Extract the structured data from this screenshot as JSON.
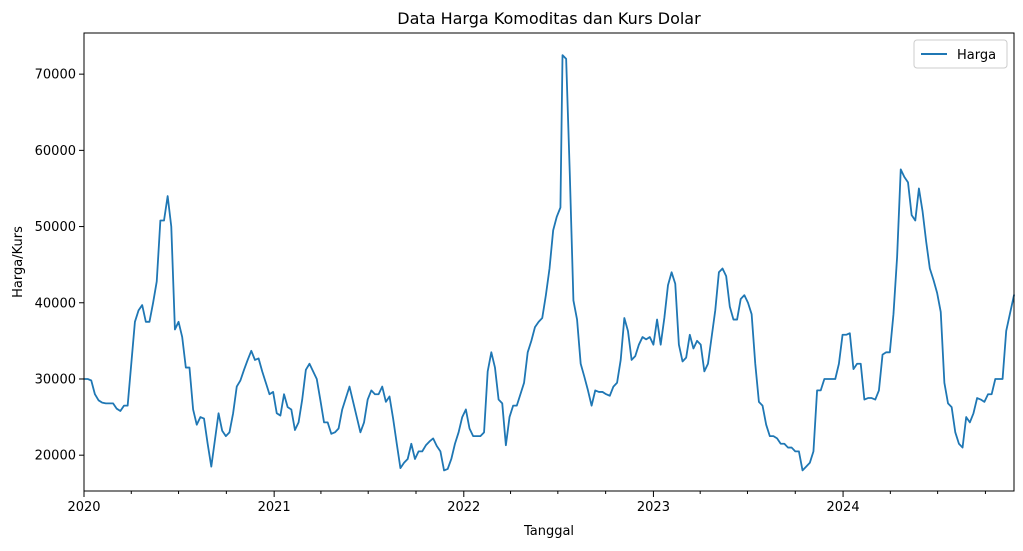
{
  "chart_data": {
    "type": "line",
    "title": "Data Harga Komoditas dan Kurs Dolar",
    "xlabel": "Tanggal",
    "ylabel": "Harga/Kurs",
    "x_range": [
      "2020-01-01",
      "2024-11-25"
    ],
    "ylim": [
      15300,
      75400
    ],
    "yticks": [
      20000,
      30000,
      40000,
      50000,
      60000,
      70000
    ],
    "yticklabels": [
      "20000",
      "30000",
      "40000",
      "50000",
      "60000",
      "70000"
    ],
    "xticks": [
      "2020-01-01",
      "2021-01-01",
      "2022-01-01",
      "2023-01-01",
      "2024-01-01"
    ],
    "xticklabels": [
      "2020",
      "2021",
      "2022",
      "2023",
      "2024"
    ],
    "minor_xticks": [
      "2020-04-01",
      "2020-07-01",
      "2020-10-01",
      "2021-04-01",
      "2021-07-01",
      "2021-10-01",
      "2022-04-01",
      "2022-07-01",
      "2022-10-01",
      "2023-04-01",
      "2023-07-01",
      "2023-10-01",
      "2024-04-01",
      "2024-07-01",
      "2024-10-01"
    ],
    "grid": false,
    "legend_position": "top-right",
    "color": "#1f77b4",
    "series": [
      {
        "name": "Harga",
        "points": [
          [
            "2020-01-01",
            30000
          ],
          [
            "2020-01-08",
            30000
          ],
          [
            "2020-01-15",
            29800
          ],
          [
            "2020-01-22",
            28000
          ],
          [
            "2020-01-29",
            27200
          ],
          [
            "2020-02-05",
            26900
          ],
          [
            "2020-02-12",
            26800
          ],
          [
            "2020-02-19",
            26800
          ],
          [
            "2020-02-26",
            26800
          ],
          [
            "2020-03-04",
            26100
          ],
          [
            "2020-03-11",
            25800
          ],
          [
            "2020-03-18",
            26500
          ],
          [
            "2020-03-25",
            26500
          ],
          [
            "2020-04-01",
            32000
          ],
          [
            "2020-04-08",
            37500
          ],
          [
            "2020-04-15",
            39000
          ],
          [
            "2020-04-22",
            39700
          ],
          [
            "2020-04-29",
            37500
          ],
          [
            "2020-05-06",
            37500
          ],
          [
            "2020-05-13",
            40000
          ],
          [
            "2020-05-20",
            42800
          ],
          [
            "2020-05-27",
            50800
          ],
          [
            "2020-06-03",
            50800
          ],
          [
            "2020-06-10",
            54000
          ],
          [
            "2020-06-17",
            50000
          ],
          [
            "2020-06-24",
            36500
          ],
          [
            "2020-07-01",
            37500
          ],
          [
            "2020-07-08",
            35500
          ],
          [
            "2020-07-15",
            31500
          ],
          [
            "2020-07-22",
            31500
          ],
          [
            "2020-07-29",
            26000
          ],
          [
            "2020-08-05",
            24000
          ],
          [
            "2020-08-12",
            25000
          ],
          [
            "2020-08-19",
            24800
          ],
          [
            "2020-08-26",
            21500
          ],
          [
            "2020-09-02",
            18500
          ],
          [
            "2020-09-09",
            22000
          ],
          [
            "2020-09-16",
            25500
          ],
          [
            "2020-09-23",
            23200
          ],
          [
            "2020-09-30",
            22500
          ],
          [
            "2020-10-07",
            23000
          ],
          [
            "2020-10-14",
            25500
          ],
          [
            "2020-10-21",
            29000
          ],
          [
            "2020-10-28",
            29800
          ],
          [
            "2020-11-04",
            31200
          ],
          [
            "2020-11-11",
            32500
          ],
          [
            "2020-11-18",
            33700
          ],
          [
            "2020-11-25",
            32500
          ],
          [
            "2020-12-02",
            32700
          ],
          [
            "2020-12-09",
            31000
          ],
          [
            "2020-12-16",
            29500
          ],
          [
            "2020-12-23",
            28000
          ],
          [
            "2020-12-30",
            28300
          ],
          [
            "2021-01-06",
            25500
          ],
          [
            "2021-01-13",
            25200
          ],
          [
            "2021-01-20",
            28000
          ],
          [
            "2021-01-27",
            26300
          ],
          [
            "2021-02-03",
            26000
          ],
          [
            "2021-02-10",
            23300
          ],
          [
            "2021-02-17",
            24300
          ],
          [
            "2021-02-24",
            27300
          ],
          [
            "2021-03-03",
            31200
          ],
          [
            "2021-03-10",
            32000
          ],
          [
            "2021-03-17",
            31000
          ],
          [
            "2021-03-24",
            30000
          ],
          [
            "2021-03-31",
            27200
          ],
          [
            "2021-04-07",
            24300
          ],
          [
            "2021-04-14",
            24300
          ],
          [
            "2021-04-21",
            22800
          ],
          [
            "2021-04-28",
            23000
          ],
          [
            "2021-05-05",
            23500
          ],
          [
            "2021-05-12",
            26000
          ],
          [
            "2021-05-19",
            27500
          ],
          [
            "2021-05-26",
            29000
          ],
          [
            "2021-06-02",
            27000
          ],
          [
            "2021-06-09",
            25000
          ],
          [
            "2021-06-16",
            23000
          ],
          [
            "2021-06-23",
            24300
          ],
          [
            "2021-06-30",
            27300
          ],
          [
            "2021-07-07",
            28500
          ],
          [
            "2021-07-14",
            28000
          ],
          [
            "2021-07-21",
            28000
          ],
          [
            "2021-07-28",
            29000
          ],
          [
            "2021-08-04",
            27000
          ],
          [
            "2021-08-11",
            27700
          ],
          [
            "2021-08-18",
            24800
          ],
          [
            "2021-08-25",
            21500
          ],
          [
            "2021-09-01",
            18300
          ],
          [
            "2021-09-08",
            19000
          ],
          [
            "2021-09-15",
            19500
          ],
          [
            "2021-09-22",
            21500
          ],
          [
            "2021-09-29",
            19500
          ],
          [
            "2021-10-06",
            20500
          ],
          [
            "2021-10-13",
            20500
          ],
          [
            "2021-10-20",
            21300
          ],
          [
            "2021-10-27",
            21800
          ],
          [
            "2021-11-03",
            22200
          ],
          [
            "2021-11-10",
            21200
          ],
          [
            "2021-11-17",
            20500
          ],
          [
            "2021-11-24",
            18000
          ],
          [
            "2021-12-01",
            18200
          ],
          [
            "2021-12-08",
            19500
          ],
          [
            "2021-12-15",
            21500
          ],
          [
            "2021-12-22",
            23000
          ],
          [
            "2021-12-29",
            25000
          ],
          [
            "2022-01-05",
            26000
          ],
          [
            "2022-01-12",
            23500
          ],
          [
            "2022-01-19",
            22500
          ],
          [
            "2022-01-26",
            22500
          ],
          [
            "2022-02-02",
            22500
          ],
          [
            "2022-02-09",
            23000
          ],
          [
            "2022-02-16",
            31000
          ],
          [
            "2022-02-23",
            33500
          ],
          [
            "2022-03-02",
            31500
          ],
          [
            "2022-03-09",
            27300
          ],
          [
            "2022-03-16",
            26800
          ],
          [
            "2022-03-23",
            21300
          ],
          [
            "2022-03-30",
            25000
          ],
          [
            "2022-04-06",
            26500
          ],
          [
            "2022-04-13",
            26500
          ],
          [
            "2022-04-20",
            28000
          ],
          [
            "2022-04-27",
            29500
          ],
          [
            "2022-05-04",
            33500
          ],
          [
            "2022-05-11",
            35000
          ],
          [
            "2022-05-18",
            36800
          ],
          [
            "2022-05-25",
            37500
          ],
          [
            "2022-06-01",
            38000
          ],
          [
            "2022-06-08",
            41000
          ],
          [
            "2022-06-15",
            44500
          ],
          [
            "2022-06-22",
            49500
          ],
          [
            "2022-06-29",
            51300
          ],
          [
            "2022-07-06",
            52500
          ],
          [
            "2022-07-10",
            72500
          ],
          [
            "2022-07-17",
            72000
          ],
          [
            "2022-07-24",
            57000
          ],
          [
            "2022-07-31",
            40300
          ],
          [
            "2022-08-07",
            37800
          ],
          [
            "2022-08-14",
            32000
          ],
          [
            "2022-08-21",
            30300
          ],
          [
            "2022-08-28",
            28500
          ],
          [
            "2022-09-04",
            26500
          ],
          [
            "2022-09-11",
            28500
          ],
          [
            "2022-09-18",
            28300
          ],
          [
            "2022-09-25",
            28300
          ],
          [
            "2022-10-02",
            28000
          ],
          [
            "2022-10-09",
            27800
          ],
          [
            "2022-10-16",
            29000
          ],
          [
            "2022-10-23",
            29500
          ],
          [
            "2022-10-30",
            32500
          ],
          [
            "2022-11-06",
            38000
          ],
          [
            "2022-11-13",
            36300
          ],
          [
            "2022-11-20",
            32500
          ],
          [
            "2022-11-27",
            33000
          ],
          [
            "2022-12-04",
            34500
          ],
          [
            "2022-12-11",
            35500
          ],
          [
            "2022-12-18",
            35200
          ],
          [
            "2022-12-25",
            35500
          ],
          [
            "2023-01-01",
            34500
          ],
          [
            "2023-01-08",
            37800
          ],
          [
            "2023-01-15",
            34500
          ],
          [
            "2023-01-22",
            38000
          ],
          [
            "2023-01-29",
            42300
          ],
          [
            "2023-02-05",
            44000
          ],
          [
            "2023-02-12",
            42500
          ],
          [
            "2023-02-19",
            34500
          ],
          [
            "2023-02-26",
            32300
          ],
          [
            "2023-03-05",
            32800
          ],
          [
            "2023-03-12",
            35800
          ],
          [
            "2023-03-19",
            34000
          ],
          [
            "2023-03-26",
            35000
          ],
          [
            "2023-04-02",
            34500
          ],
          [
            "2023-04-09",
            31000
          ],
          [
            "2023-04-16",
            32000
          ],
          [
            "2023-04-23",
            35500
          ],
          [
            "2023-04-30",
            39000
          ],
          [
            "2023-05-07",
            44000
          ],
          [
            "2023-05-14",
            44500
          ],
          [
            "2023-05-21",
            43500
          ],
          [
            "2023-05-28",
            39500
          ],
          [
            "2023-06-04",
            37800
          ],
          [
            "2023-06-11",
            37800
          ],
          [
            "2023-06-18",
            40500
          ],
          [
            "2023-06-25",
            41000
          ],
          [
            "2023-07-02",
            40000
          ],
          [
            "2023-07-09",
            38500
          ],
          [
            "2023-07-16",
            32000
          ],
          [
            "2023-07-23",
            27000
          ],
          [
            "2023-07-30",
            26500
          ],
          [
            "2023-08-06",
            24000
          ],
          [
            "2023-08-13",
            22500
          ],
          [
            "2023-08-20",
            22500
          ],
          [
            "2023-08-27",
            22200
          ],
          [
            "2023-09-03",
            21500
          ],
          [
            "2023-09-10",
            21500
          ],
          [
            "2023-09-17",
            21000
          ],
          [
            "2023-09-24",
            21000
          ],
          [
            "2023-10-01",
            20500
          ],
          [
            "2023-10-08",
            20500
          ],
          [
            "2023-10-15",
            18000
          ],
          [
            "2023-10-22",
            18500
          ],
          [
            "2023-10-29",
            19000
          ],
          [
            "2023-11-05",
            20500
          ],
          [
            "2023-11-12",
            28500
          ],
          [
            "2023-11-19",
            28500
          ],
          [
            "2023-11-26",
            30000
          ],
          [
            "2023-12-03",
            30000
          ],
          [
            "2023-12-10",
            30000
          ],
          [
            "2023-12-17",
            30000
          ],
          [
            "2023-12-24",
            32000
          ],
          [
            "2023-12-31",
            35800
          ],
          [
            "2024-01-07",
            35800
          ],
          [
            "2024-01-14",
            36000
          ],
          [
            "2024-01-21",
            31300
          ],
          [
            "2024-01-28",
            32000
          ],
          [
            "2024-02-04",
            32000
          ],
          [
            "2024-02-11",
            27300
          ],
          [
            "2024-02-18",
            27500
          ],
          [
            "2024-02-25",
            27500
          ],
          [
            "2024-03-03",
            27300
          ],
          [
            "2024-03-10",
            28500
          ],
          [
            "2024-03-17",
            33200
          ],
          [
            "2024-03-24",
            33500
          ],
          [
            "2024-03-31",
            33500
          ],
          [
            "2024-04-07",
            38500
          ],
          [
            "2024-04-14",
            46000
          ],
          [
            "2024-04-21",
            57500
          ],
          [
            "2024-04-28",
            56500
          ],
          [
            "2024-05-05",
            55800
          ],
          [
            "2024-05-12",
            51500
          ],
          [
            "2024-05-19",
            50800
          ],
          [
            "2024-05-26",
            55000
          ],
          [
            "2024-06-02",
            52000
          ],
          [
            "2024-06-09",
            48000
          ],
          [
            "2024-06-16",
            44500
          ],
          [
            "2024-06-23",
            43000
          ],
          [
            "2024-06-30",
            41300
          ],
          [
            "2024-07-07",
            38800
          ],
          [
            "2024-07-14",
            29500
          ],
          [
            "2024-07-21",
            26800
          ],
          [
            "2024-07-28",
            26300
          ],
          [
            "2024-08-04",
            23000
          ],
          [
            "2024-08-11",
            21500
          ],
          [
            "2024-08-18",
            21000
          ],
          [
            "2024-08-25",
            25000
          ],
          [
            "2024-09-01",
            24300
          ],
          [
            "2024-09-08",
            25500
          ],
          [
            "2024-09-15",
            27500
          ],
          [
            "2024-09-22",
            27300
          ],
          [
            "2024-09-29",
            27000
          ],
          [
            "2024-10-06",
            28000
          ],
          [
            "2024-10-13",
            28000
          ],
          [
            "2024-10-20",
            30000
          ],
          [
            "2024-10-27",
            30000
          ],
          [
            "2024-11-03",
            30000
          ],
          [
            "2024-11-10",
            36300
          ],
          [
            "2024-11-17",
            38500
          ],
          [
            "2024-11-25",
            41000
          ]
        ]
      }
    ]
  }
}
